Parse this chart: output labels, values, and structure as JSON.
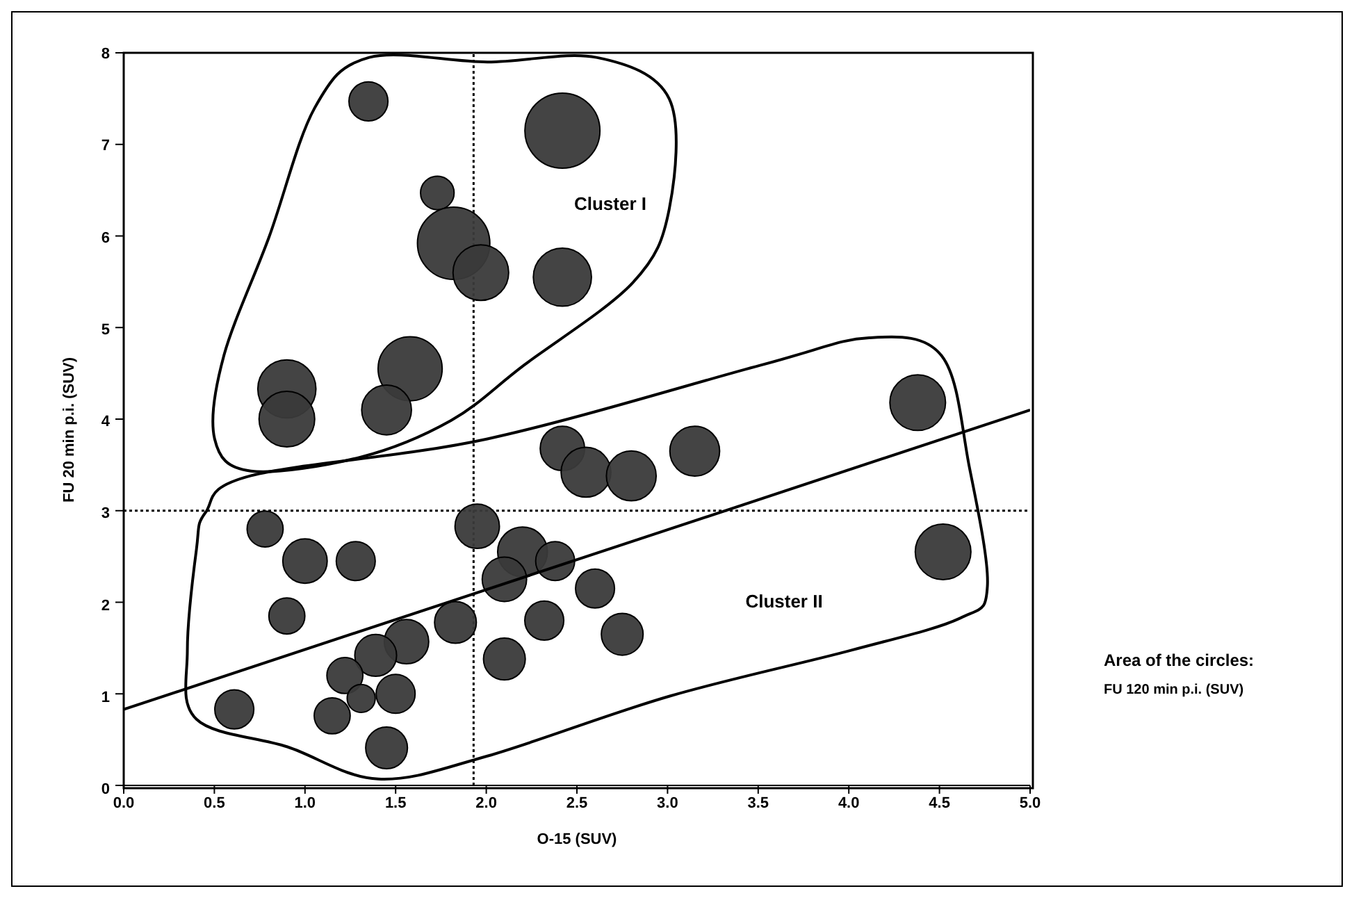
{
  "chart_data": {
    "type": "bubble",
    "xlabel": "O-15 (SUV)",
    "ylabel": "FU 20 min p.i. (SUV)",
    "annotations": [
      "Cluster I",
      "Cluster II",
      "Area of the circles:",
      "FU 120 min p.i. (SUV)"
    ],
    "xlim": [
      0,
      5
    ],
    "xticks": [
      {
        "value": 0,
        "label": "0.0"
      },
      {
        "value": 0.5,
        "label": "0.5"
      },
      {
        "value": 1,
        "label": "1.0"
      },
      {
        "value": 1.5,
        "label": "1.5"
      },
      {
        "value": 2,
        "label": "2.0"
      },
      {
        "value": 2.5,
        "label": "2.5"
      },
      {
        "value": 3,
        "label": "3.0"
      },
      {
        "value": 3.5,
        "label": "3.5"
      },
      {
        "value": 4,
        "label": "4.0"
      },
      {
        "value": 4.5,
        "label": "4.5"
      },
      {
        "value": 5,
        "label": "5.0"
      }
    ],
    "ylim": [
      0,
      8
    ],
    "yticks": [
      0,
      1,
      2,
      3,
      4,
      5,
      6,
      7,
      8
    ],
    "grid": false,
    "legend": false,
    "marker": "circle",
    "ref_lines": [
      {
        "axis": "x",
        "value": 1.93,
        "line_style": "dotted",
        "color": "#000000"
      },
      {
        "axis": "y",
        "value": 3,
        "line_style": "dotted",
        "color": "#000000"
      }
    ],
    "series": [
      {
        "type": "bubble",
        "color": "#3a3a3a",
        "x": [
          1.35,
          2.42,
          1.73,
          1.82,
          1.97,
          2.42,
          0.9,
          0.9,
          1.58,
          1.45,
          4.38,
          2.42,
          2.55,
          2.8,
          3.15,
          4.52,
          0.78,
          1.0,
          1.28,
          0.9,
          1.95,
          2.2,
          2.1,
          2.38,
          2.6,
          2.32,
          2.75,
          2.1,
          1.83,
          1.56,
          1.39,
          1.22,
          1.31,
          1.5,
          1.15,
          1.45,
          0.61
        ],
        "values": [
          7.47,
          7.15,
          6.47,
          5.92,
          5.6,
          5.55,
          4.33,
          4.0,
          4.55,
          4.1,
          4.18,
          3.68,
          3.42,
          3.38,
          3.65,
          2.55,
          2.8,
          2.45,
          2.45,
          1.85,
          2.83,
          2.55,
          2.25,
          2.45,
          2.15,
          1.8,
          1.65,
          1.38,
          1.78,
          1.57,
          1.42,
          1.2,
          0.95,
          1.0,
          0.76,
          0.41,
          0.83
        ],
        "sizes": [
          0.27,
          1,
          0.2,
          0.93,
          0.55,
          0.6,
          0.6,
          0.55,
          0.73,
          0.44,
          0.55,
          0.35,
          0.44,
          0.44,
          0.44,
          0.55,
          0.23,
          0.35,
          0.27,
          0.23,
          0.35,
          0.44,
          0.35,
          0.27,
          0.27,
          0.27,
          0.31,
          0.31,
          0.31,
          0.35,
          0.31,
          0.23,
          0.14,
          0.27,
          0.23,
          0.31,
          0.27
        ]
      },
      {
        "type": "line",
        "marker": "none",
        "color": "#000000",
        "x": [
          0,
          5
        ],
        "values": [
          0.83,
          4.1
        ]
      }
    ]
  }
}
